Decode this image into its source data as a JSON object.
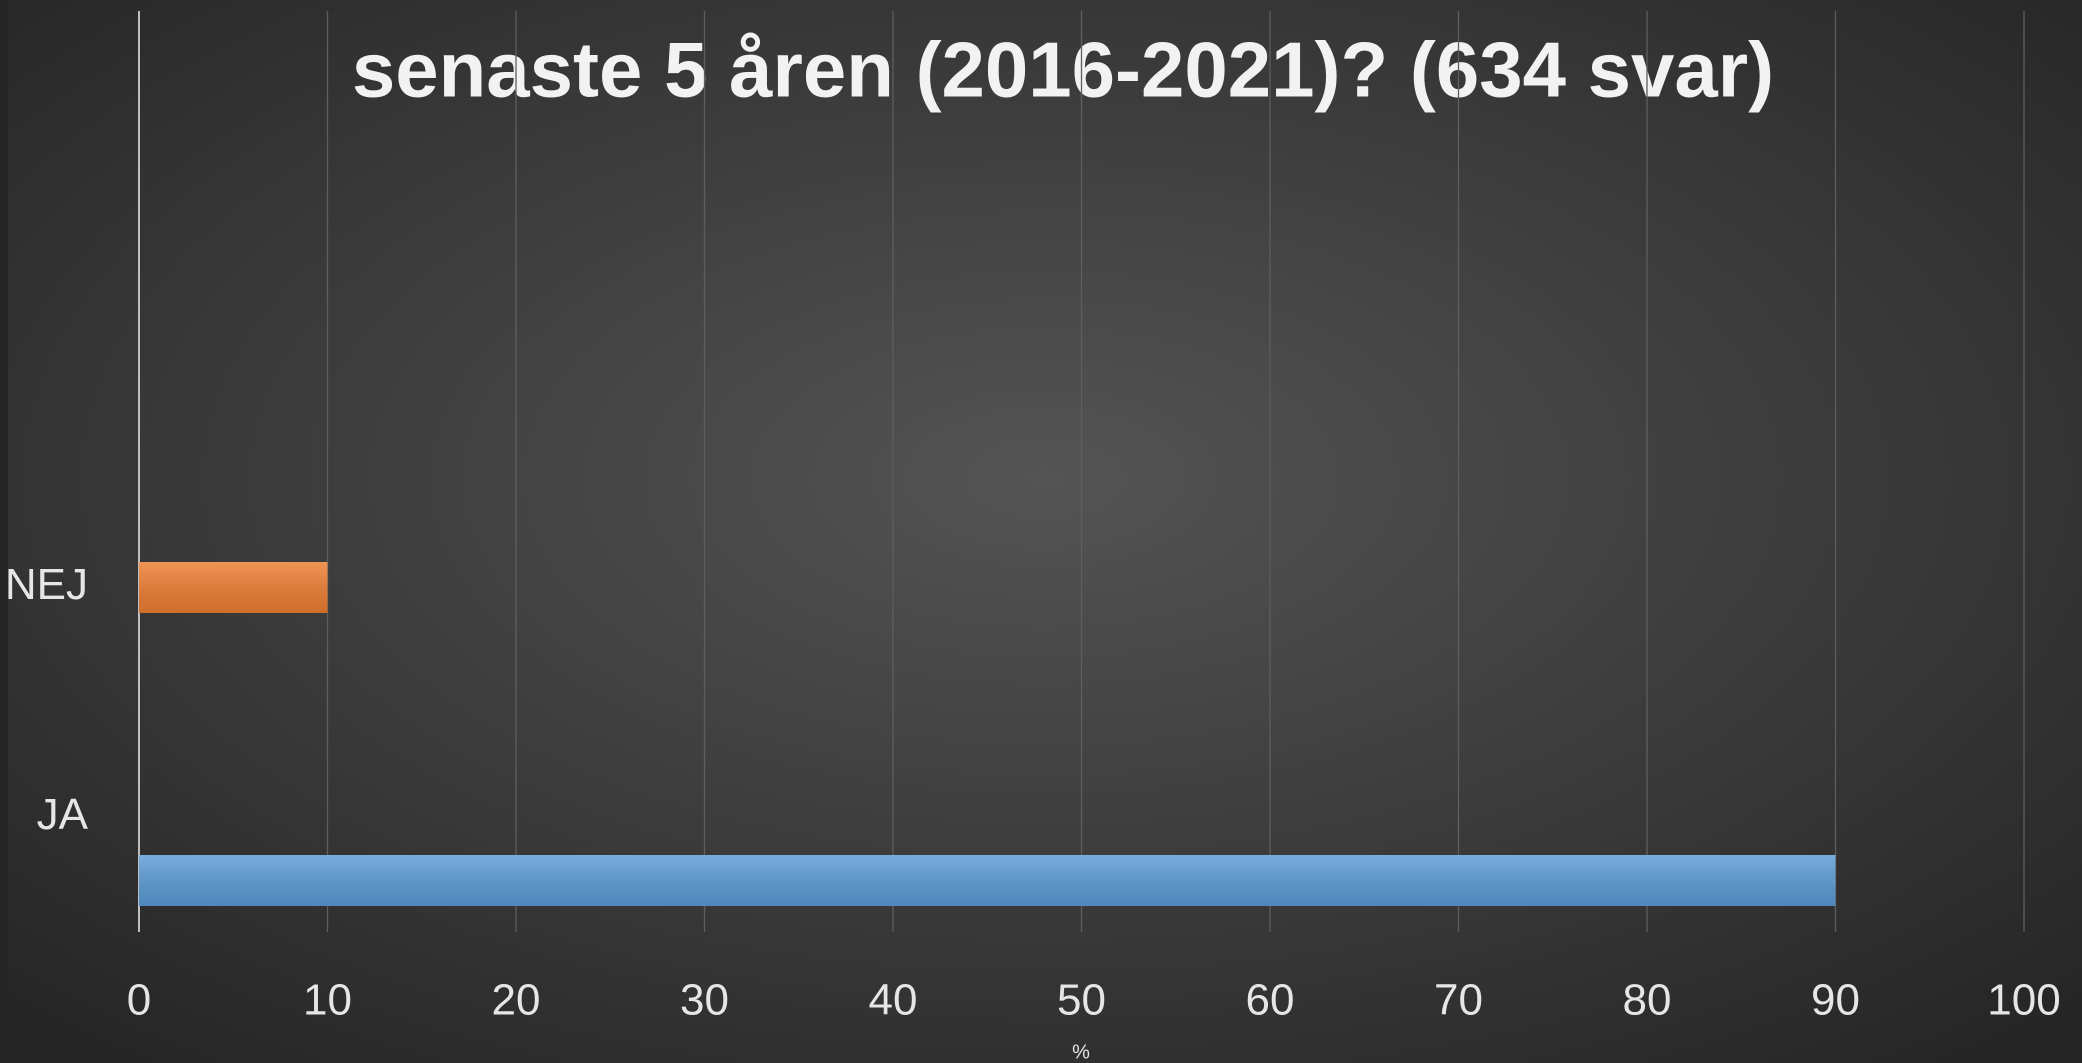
{
  "chart_data": {
    "type": "barh",
    "title": "senaste 5 åren (2016-2021)? (634 svar)",
    "categories": [
      "NEJ",
      "JA"
    ],
    "values": [
      10,
      90
    ],
    "colors": [
      "#ed7d31",
      "#5b9bd5"
    ],
    "xlabel": "%",
    "xlim": [
      0,
      100
    ],
    "xticks": [
      0,
      10,
      20,
      30,
      40,
      50,
      60,
      70,
      80,
      90,
      100
    ],
    "grid": true
  }
}
